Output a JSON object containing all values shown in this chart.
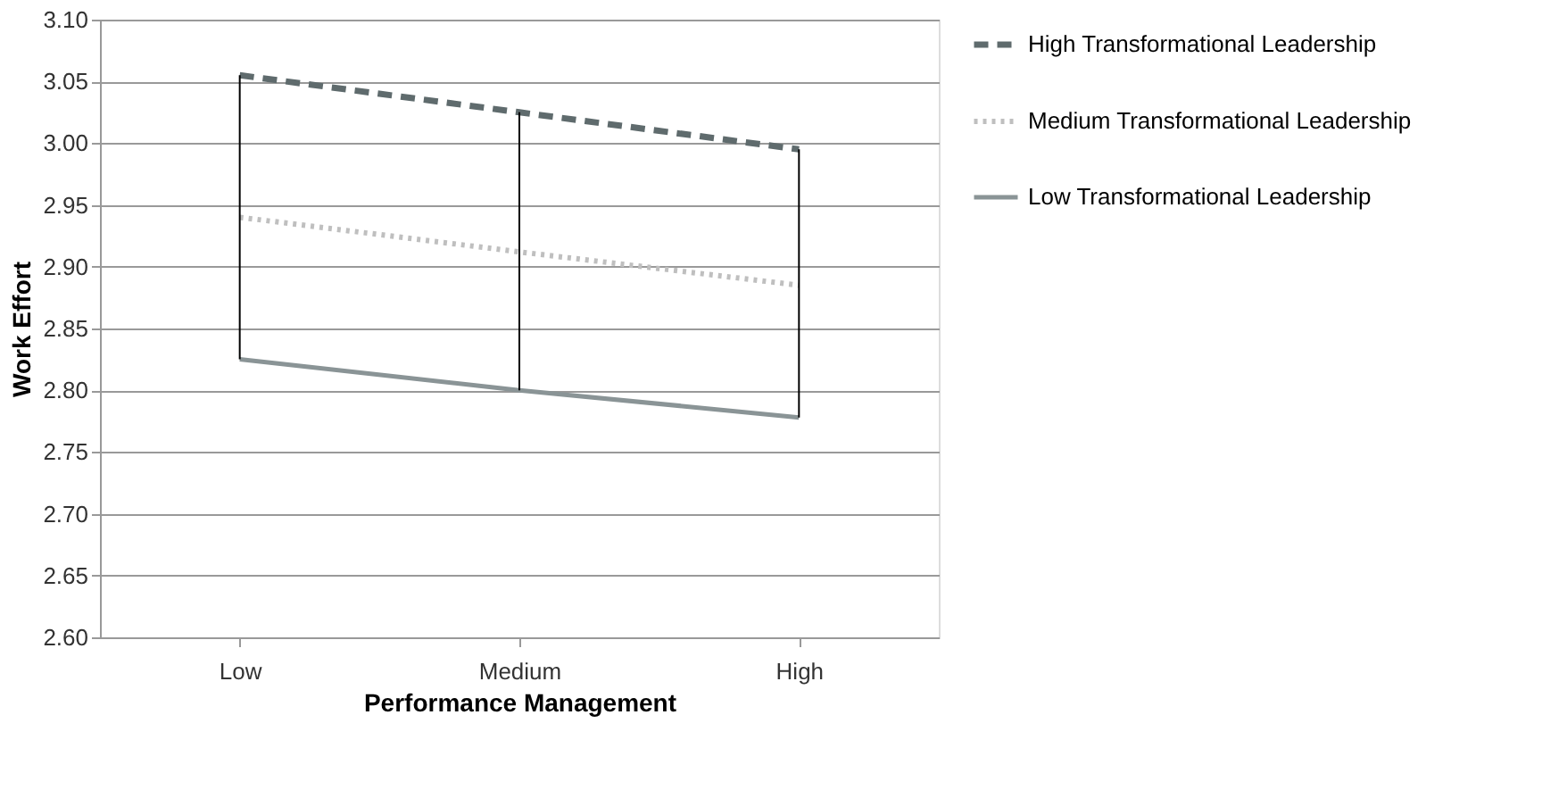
{
  "chart_data": {
    "type": "line",
    "xlabel": "Performance Management",
    "ylabel": "Work Effort",
    "categories": [
      "Low",
      "Medium",
      "High"
    ],
    "series": [
      {
        "name": "High Transformational Leadership",
        "color": "#5f6b6d",
        "line_style": "dashed",
        "values": [
          3.055,
          3.025,
          2.995
        ]
      },
      {
        "name": "Medium Transformational Leadership",
        "color": "#bfbfbf",
        "line_style": "dotted",
        "values": [
          2.94,
          2.912,
          2.885
        ],
        "errors": [
          [
            2.825,
            3.055
          ],
          [
            2.8,
            3.025
          ],
          [
            2.778,
            2.995
          ]
        ]
      },
      {
        "name": "Low Transformational Leadership",
        "color": "#8a9496",
        "line_style": "solid",
        "values": [
          2.825,
          2.8,
          2.778
        ]
      }
    ],
    "ylim": [
      2.6,
      3.1
    ],
    "yticks": [
      {
        "value": 2.6,
        "label": "2.60"
      },
      2.65,
      {
        "value": 2.7,
        "label": "2.70"
      },
      2.75,
      {
        "value": 2.8,
        "label": "2.80"
      },
      2.85,
      {
        "value": 2.9,
        "label": "2.90"
      },
      2.95,
      {
        "value": 3.0,
        "label": "3.00"
      },
      3.05,
      {
        "value": 3.1,
        "label": "3.10"
      }
    ],
    "grid": "y",
    "legend": "right",
    "marker": "none"
  }
}
